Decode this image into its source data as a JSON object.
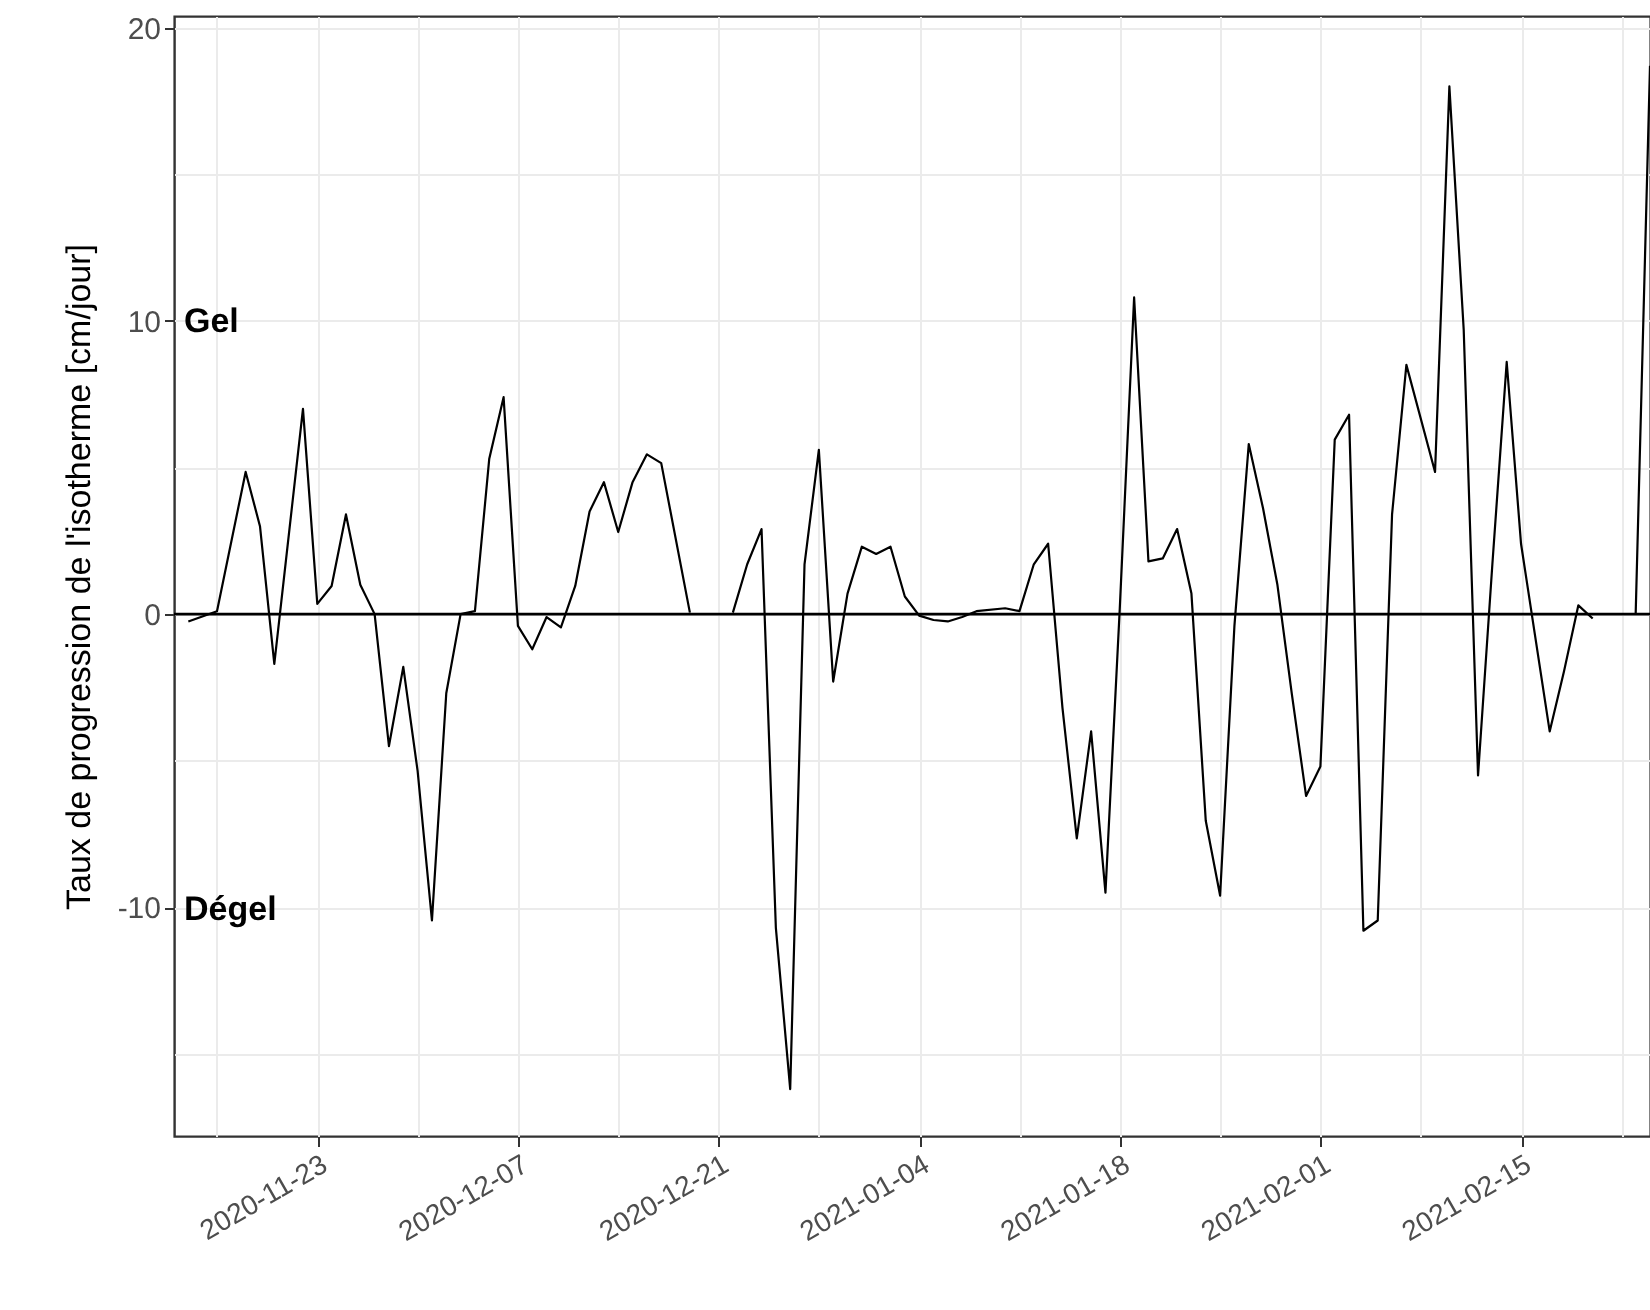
{
  "chart_data": {
    "type": "line",
    "ylabel": "Taux de progression de l'isotherme [cm/jour]",
    "x": [
      "2020-11-14",
      "2020-11-16",
      "2020-11-18",
      "2020-11-19",
      "2020-11-20",
      "2020-11-22",
      "2020-11-23",
      "2020-11-24",
      "2020-11-25",
      "2020-11-26",
      "2020-11-27",
      "2020-11-28",
      "2020-11-29",
      "2020-11-30",
      "2020-12-01",
      "2020-12-02",
      "2020-12-03",
      "2020-12-04",
      "2020-12-05",
      "2020-12-06",
      "2020-12-07",
      "2020-12-08",
      "2020-12-09",
      "2020-12-10",
      "2020-12-11",
      "2020-12-12",
      "2020-12-13",
      "2020-12-14",
      "2020-12-15",
      "2020-12-16",
      "2020-12-17",
      "2020-12-19",
      "2020-12-20",
      "2020-12-22",
      "2020-12-23",
      "2020-12-24",
      "2020-12-25",
      "2020-12-26",
      "2020-12-27",
      "2020-12-28",
      "2020-12-29",
      "2020-12-30",
      "2020-12-31",
      "2021-01-01",
      "2021-01-02",
      "2021-01-03",
      "2021-01-04",
      "2021-01-05",
      "2021-01-06",
      "2021-01-07",
      "2021-01-08",
      "2021-01-10",
      "2021-01-11",
      "2021-01-12",
      "2021-01-13",
      "2021-01-14",
      "2021-01-15",
      "2021-01-16",
      "2021-01-17",
      "2021-01-18",
      "2021-01-19",
      "2021-01-20",
      "2021-01-21",
      "2021-01-22",
      "2021-01-23",
      "2021-01-24",
      "2021-01-25",
      "2021-01-26",
      "2021-01-27",
      "2021-01-28",
      "2021-01-29",
      "2021-01-30",
      "2021-01-31",
      "2021-02-01",
      "2021-02-02",
      "2021-02-03",
      "2021-02-04",
      "2021-02-05",
      "2021-02-06",
      "2021-02-07",
      "2021-02-09",
      "2021-02-10",
      "2021-02-11",
      "2021-02-12",
      "2021-02-13",
      "2021-02-14",
      "2021-02-15",
      "2021-02-17",
      "2021-02-18",
      "2021-02-19",
      "2021-02-20",
      "2021-02-21",
      "2021-02-23",
      "2021-02-24"
    ],
    "values": [
      -0.25,
      0.1,
      4.85,
      3.0,
      -1.7,
      7.0,
      0.35,
      0.96,
      3.4,
      1.0,
      0,
      -4.5,
      -1.8,
      -5.35,
      -10.45,
      -2.7,
      0,
      0.1,
      5.3,
      7.4,
      -0.4,
      -1.2,
      -0.1,
      -0.45,
      0.96,
      3.5,
      4.5,
      2.8,
      4.5,
      5.45,
      5.15,
      0.05,
      null,
      0.05,
      1.7,
      2.9,
      -10.7,
      -16.2,
      1.7,
      5.6,
      -2.3,
      0.7,
      2.3,
      2.05,
      2.3,
      0.6,
      -0.05,
      -0.2,
      -0.25,
      -0.1,
      0.1,
      0.2,
      0.1,
      1.7,
      2.4,
      -3.2,
      -7.65,
      -4.0,
      -9.5,
      0.2,
      10.8,
      1.8,
      1.9,
      2.9,
      0.7,
      -7.05,
      -9.6,
      -0.4,
      5.8,
      3.6,
      1.0,
      -2.7,
      -6.2,
      -5.2,
      5.95,
      6.8,
      -10.8,
      -10.45,
      3.4,
      8.5,
      4.85,
      18.0,
      9.7,
      -5.5,
      1.7,
      8.6,
      2.4,
      -4.0,
      -1.95,
      0.3,
      -0.15,
      null,
      0,
      18.7
    ],
    "color": "#000000",
    "xlim": [
      "2020-11-13",
      "2021-02-24"
    ],
    "xticks": [
      {
        "value": "2020-11-16",
        "label": null
      },
      {
        "value": "2020-11-23",
        "label": "2020-11-23"
      },
      {
        "value": "2020-11-30",
        "label": null
      },
      {
        "value": "2020-12-07",
        "label": "2020-12-07"
      },
      {
        "value": "2020-12-14",
        "label": null
      },
      {
        "value": "2020-12-21",
        "label": "2020-12-21"
      },
      {
        "value": "2020-12-28",
        "label": null
      },
      {
        "value": "2021-01-04",
        "label": "2021-01-04"
      },
      {
        "value": "2021-01-11",
        "label": null
      },
      {
        "value": "2021-01-18",
        "label": "2021-01-18"
      },
      {
        "value": "2021-01-25",
        "label": null
      },
      {
        "value": "2021-02-01",
        "label": "2021-02-01"
      },
      {
        "value": "2021-02-08",
        "label": null
      },
      {
        "value": "2021-02-15",
        "label": "2021-02-15"
      },
      {
        "value": "2021-02-22",
        "label": null
      }
    ],
    "ylim": [
      -17.8,
      20.4
    ],
    "yticks": [
      {
        "value": -15,
        "label": null
      },
      -10,
      {
        "value": -5,
        "label": null
      },
      0,
      {
        "value": 5,
        "label": null
      },
      10,
      {
        "value": 15,
        "label": null
      },
      20
    ],
    "ref_lines": [
      {
        "axis": "y",
        "value": 0,
        "color": "#000000"
      }
    ],
    "annotations": [
      "Gel",
      "Dégel"
    ],
    "grid": true,
    "line_style": "solid"
  }
}
